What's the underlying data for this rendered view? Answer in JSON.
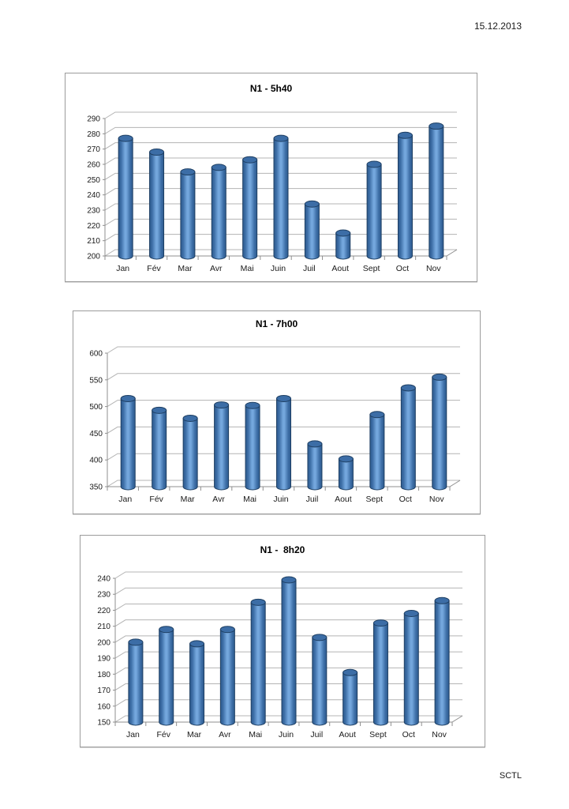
{
  "page": {
    "date": "15.12.2013",
    "footer": "SCTL",
    "background": "#ffffff"
  },
  "chart_data": [
    {
      "type": "bar",
      "style": "3d-cylinder",
      "title": "N1 - 5h40",
      "categories": [
        "Jan",
        "Fév",
        "Mar",
        "Avr",
        "Mai",
        "Juin",
        "Juil",
        "Aout",
        "Sept",
        "Oct",
        "Nov"
      ],
      "values": [
        277,
        268,
        255,
        258,
        263,
        277,
        234,
        215,
        260,
        279,
        285
      ],
      "ylim": [
        200,
        290
      ],
      "ytick_step": 10,
      "xlabel": "",
      "ylabel": "",
      "grid": true,
      "legend": "none",
      "bar_color": "#4f81bd"
    },
    {
      "type": "bar",
      "style": "3d-cylinder",
      "title": "N1 - 7h00",
      "categories": [
        "Jan",
        "Fév",
        "Mar",
        "Avr",
        "Mai",
        "Juin",
        "Juil",
        "Aout",
        "Sept",
        "Oct",
        "Nov"
      ],
      "values": [
        515,
        493,
        478,
        503,
        502,
        515,
        430,
        402,
        485,
        535,
        555
      ],
      "ylim": [
        350,
        600
      ],
      "ytick_step": 50,
      "xlabel": "",
      "ylabel": "",
      "grid": true,
      "legend": "none",
      "bar_color": "#4f81bd"
    },
    {
      "type": "bar",
      "style": "3d-cylinder",
      "title": "N1 -  8h20",
      "categories": [
        "Jan",
        "Fév",
        "Mar",
        "Avr",
        "Mai",
        "Juin",
        "Juil",
        "Aout",
        "Sept",
        "Oct",
        "Nov"
      ],
      "values": [
        200,
        208,
        199,
        208,
        225,
        239,
        203,
        181,
        212,
        218,
        226
      ],
      "ylim": [
        150,
        240
      ],
      "ytick_step": 10,
      "xlabel": "",
      "ylabel": "",
      "grid": true,
      "legend": "none",
      "bar_color": "#4f81bd"
    }
  ]
}
